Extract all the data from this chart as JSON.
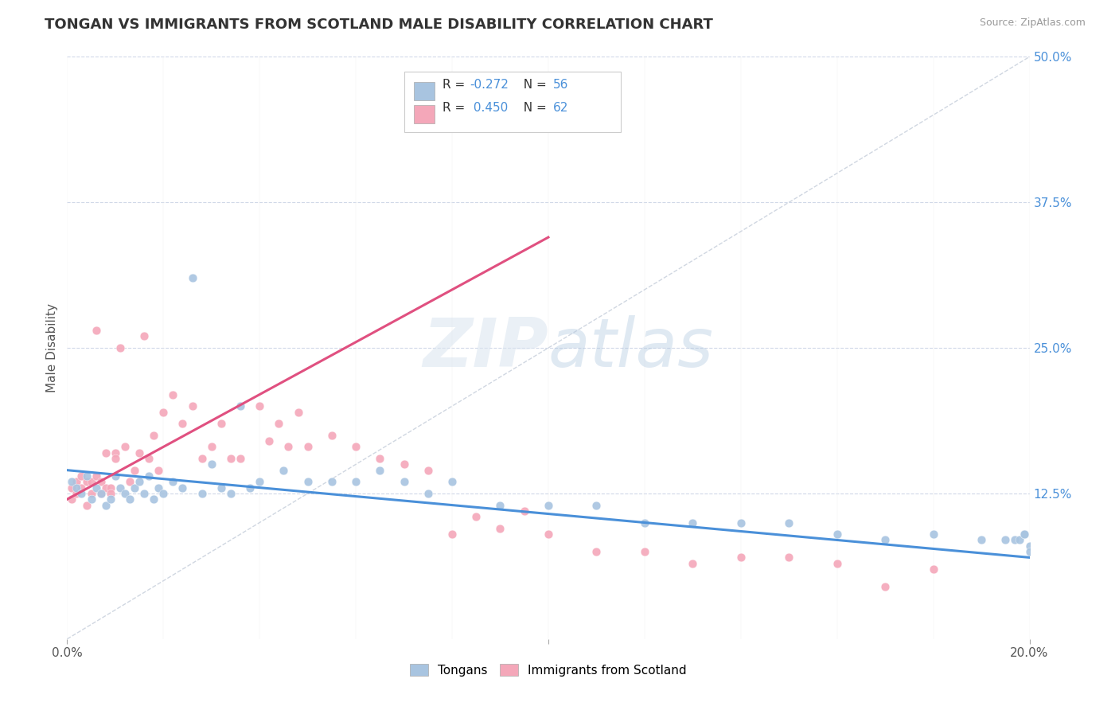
{
  "title": "TONGAN VS IMMIGRANTS FROM SCOTLAND MALE DISABILITY CORRELATION CHART",
  "source": "Source: ZipAtlas.com",
  "ylabel": "Male Disability",
  "xlim": [
    0.0,
    0.2
  ],
  "ylim": [
    0.0,
    0.5
  ],
  "ytick_labels": [
    "12.5%",
    "25.0%",
    "37.5%",
    "50.0%"
  ],
  "ytick_values": [
    0.125,
    0.25,
    0.375,
    0.5
  ],
  "legend_labels": [
    "Tongans",
    "Immigrants from Scotland"
  ],
  "blue_color": "#a8c4e0",
  "pink_color": "#f4a7b9",
  "blue_line_color": "#4a90d9",
  "pink_line_color": "#e05080",
  "ref_line_color": "#c8d0dc",
  "R_blue": -0.272,
  "N_blue": 56,
  "R_pink": 0.45,
  "N_pink": 62,
  "background_color": "#ffffff",
  "grid_color": "#d0d8e8",
  "blue_scatter_x": [
    0.001,
    0.002,
    0.003,
    0.004,
    0.005,
    0.006,
    0.007,
    0.008,
    0.009,
    0.01,
    0.011,
    0.012,
    0.013,
    0.014,
    0.015,
    0.016,
    0.017,
    0.018,
    0.019,
    0.02,
    0.022,
    0.024,
    0.026,
    0.028,
    0.03,
    0.032,
    0.034,
    0.036,
    0.038,
    0.04,
    0.045,
    0.05,
    0.055,
    0.06,
    0.065,
    0.07,
    0.075,
    0.08,
    0.09,
    0.1,
    0.11,
    0.12,
    0.13,
    0.14,
    0.15,
    0.16,
    0.17,
    0.18,
    0.19,
    0.195,
    0.197,
    0.198,
    0.199,
    0.199,
    0.2,
    0.2
  ],
  "blue_scatter_y": [
    0.135,
    0.13,
    0.125,
    0.14,
    0.12,
    0.13,
    0.125,
    0.115,
    0.12,
    0.14,
    0.13,
    0.125,
    0.12,
    0.13,
    0.135,
    0.125,
    0.14,
    0.12,
    0.13,
    0.125,
    0.135,
    0.13,
    0.31,
    0.125,
    0.15,
    0.13,
    0.125,
    0.2,
    0.13,
    0.135,
    0.145,
    0.135,
    0.135,
    0.135,
    0.145,
    0.135,
    0.125,
    0.135,
    0.115,
    0.115,
    0.115,
    0.1,
    0.1,
    0.1,
    0.1,
    0.09,
    0.085,
    0.09,
    0.085,
    0.085,
    0.085,
    0.085,
    0.09,
    0.09,
    0.08,
    0.075
  ],
  "pink_scatter_x": [
    0.001,
    0.001,
    0.002,
    0.002,
    0.003,
    0.003,
    0.004,
    0.004,
    0.005,
    0.005,
    0.006,
    0.006,
    0.007,
    0.007,
    0.008,
    0.008,
    0.009,
    0.009,
    0.01,
    0.01,
    0.011,
    0.012,
    0.013,
    0.014,
    0.015,
    0.016,
    0.017,
    0.018,
    0.019,
    0.02,
    0.022,
    0.024,
    0.026,
    0.028,
    0.03,
    0.032,
    0.034,
    0.036,
    0.04,
    0.042,
    0.044,
    0.046,
    0.048,
    0.05,
    0.055,
    0.06,
    0.065,
    0.07,
    0.075,
    0.08,
    0.085,
    0.09,
    0.095,
    0.1,
    0.11,
    0.12,
    0.13,
    0.14,
    0.15,
    0.16,
    0.17,
    0.18
  ],
  "pink_scatter_y": [
    0.13,
    0.12,
    0.135,
    0.125,
    0.13,
    0.14,
    0.135,
    0.115,
    0.125,
    0.135,
    0.265,
    0.14,
    0.125,
    0.135,
    0.16,
    0.13,
    0.13,
    0.125,
    0.16,
    0.155,
    0.25,
    0.165,
    0.135,
    0.145,
    0.16,
    0.26,
    0.155,
    0.175,
    0.145,
    0.195,
    0.21,
    0.185,
    0.2,
    0.155,
    0.165,
    0.185,
    0.155,
    0.155,
    0.2,
    0.17,
    0.185,
    0.165,
    0.195,
    0.165,
    0.175,
    0.165,
    0.155,
    0.15,
    0.145,
    0.09,
    0.105,
    0.095,
    0.11,
    0.09,
    0.075,
    0.075,
    0.065,
    0.07,
    0.07,
    0.065,
    0.045,
    0.06
  ],
  "blue_line_x": [
    0.0,
    0.2
  ],
  "blue_line_y": [
    0.145,
    0.07
  ],
  "pink_line_x": [
    0.0,
    0.1
  ],
  "pink_line_y": [
    0.12,
    0.345
  ]
}
